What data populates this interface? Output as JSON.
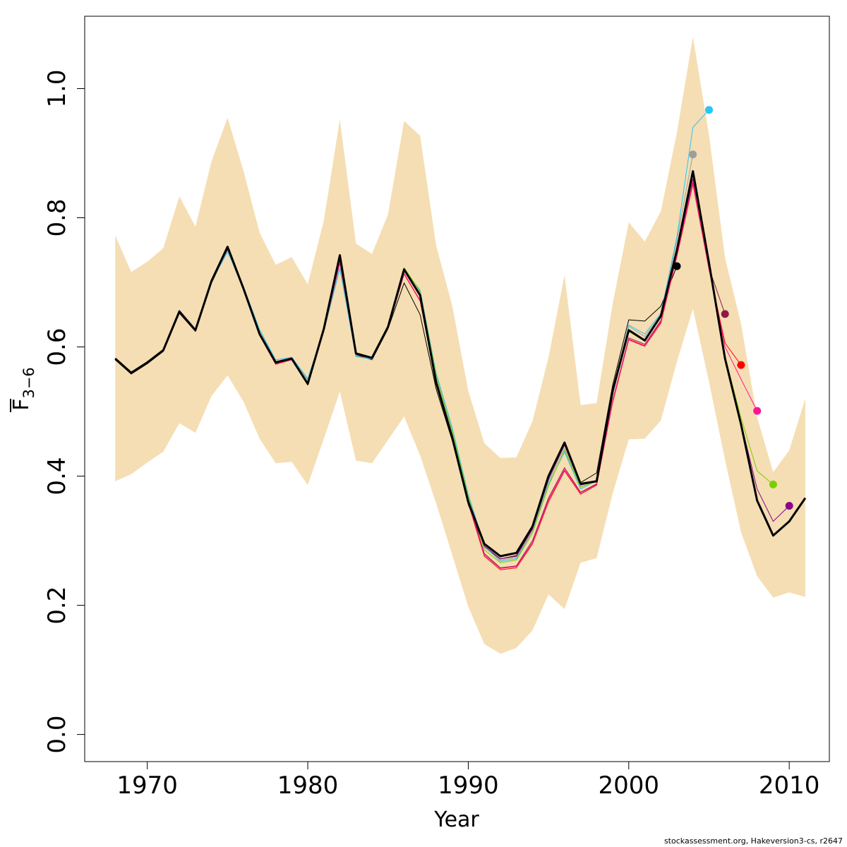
{
  "chart_data": {
    "type": "line",
    "xlabel": "Year",
    "ylabel": {
      "symbol": "F",
      "subscript": "3−6"
    },
    "xlim": [
      1966.1,
      2012.5
    ],
    "ylim": [
      -0.042,
      1.112
    ],
    "x_ticks": [
      "1970",
      "1980",
      "1990",
      "2000",
      "2010"
    ],
    "y_ticks": [
      "0.0",
      "0.2",
      "0.4",
      "0.6",
      "0.8",
      "1.0"
    ],
    "grid": false,
    "legend": "none",
    "confidence_band": {
      "color": "#F5DEB3",
      "years": [
        1968,
        1969,
        1970,
        1971,
        1972,
        1973,
        1974,
        1975,
        1976,
        1977,
        1978,
        1979,
        1980,
        1981,
        1982,
        1983,
        1984,
        1985,
        1986,
        1987,
        1988,
        1989,
        1990,
        1991,
        1992,
        1993,
        1994,
        1995,
        1996,
        1997,
        1998,
        1999,
        2000,
        2001,
        2002,
        2003,
        2004,
        2005,
        2006,
        2007,
        2008,
        2009,
        2010,
        2011
      ],
      "lower": [
        0.392,
        0.403,
        0.421,
        0.438,
        0.482,
        0.467,
        0.524,
        0.556,
        0.515,
        0.458,
        0.42,
        0.422,
        0.386,
        0.458,
        0.531,
        0.424,
        0.42,
        0.456,
        0.492,
        0.432,
        0.358,
        0.278,
        0.198,
        0.14,
        0.125,
        0.134,
        0.161,
        0.217,
        0.194,
        0.266,
        0.273,
        0.373,
        0.457,
        0.458,
        0.486,
        0.577,
        0.659,
        0.546,
        0.425,
        0.313,
        0.245,
        0.212,
        0.22,
        0.213
      ],
      "upper": [
        0.773,
        0.716,
        0.732,
        0.753,
        0.833,
        0.786,
        0.887,
        0.955,
        0.872,
        0.777,
        0.727,
        0.739,
        0.697,
        0.796,
        0.952,
        0.76,
        0.744,
        0.805,
        0.95,
        0.927,
        0.757,
        0.664,
        0.532,
        0.451,
        0.428,
        0.429,
        0.485,
        0.584,
        0.711,
        0.51,
        0.513,
        0.667,
        0.793,
        0.763,
        0.81,
        0.932,
        1.08,
        0.928,
        0.738,
        0.636,
        0.491,
        0.406,
        0.44,
        0.52
      ]
    },
    "series": [
      {
        "color": "#000000",
        "width": 3,
        "x": [
          1968,
          1969,
          1970,
          1971,
          1972,
          1973,
          1974,
          1975,
          1976,
          1977,
          1978,
          1979,
          1980,
          1981,
          1982,
          1983,
          1984,
          1985,
          1986,
          1987,
          1988,
          1989,
          1990,
          1991,
          1992,
          1993,
          1994,
          1995,
          1996,
          1997,
          1998,
          1999,
          2000,
          2001,
          2002,
          2003,
          2004,
          2005,
          2006,
          2007,
          2008,
          2009,
          2010,
          2011
        ],
        "values": [
          0.582,
          0.56,
          0.576,
          0.595,
          0.655,
          0.626,
          0.702,
          0.755,
          0.69,
          0.62,
          0.576,
          0.582,
          0.543,
          0.628,
          0.742,
          0.59,
          0.583,
          0.631,
          0.72,
          0.68,
          0.545,
          0.46,
          0.36,
          0.295,
          0.276,
          0.281,
          0.322,
          0.4,
          0.452,
          0.388,
          0.392,
          0.532,
          0.626,
          0.61,
          0.648,
          0.75,
          0.872,
          0.73,
          0.582,
          0.48,
          0.362,
          0.308,
          0.33,
          0.366
        ],
        "end_marker": false
      },
      {
        "color": "#000000",
        "width": 1,
        "x": [
          1968,
          1969,
          1970,
          1971,
          1972,
          1973,
          1974,
          1975,
          1976,
          1977,
          1978,
          1979,
          1980,
          1981,
          1982,
          1983,
          1984,
          1985,
          1986,
          1987,
          1988,
          1989,
          1990,
          1991,
          1992,
          1993,
          1994,
          1995,
          1996,
          1997,
          1998,
          1999,
          2000,
          2001,
          2002,
          2003
        ],
        "values": [
          0.58,
          0.558,
          0.574,
          0.593,
          0.652,
          0.624,
          0.699,
          0.75,
          0.688,
          0.618,
          0.574,
          0.58,
          0.541,
          0.625,
          0.735,
          0.588,
          0.58,
          0.628,
          0.699,
          0.65,
          0.535,
          0.455,
          0.356,
          0.29,
          0.272,
          0.277,
          0.319,
          0.399,
          0.451,
          0.39,
          0.405,
          0.541,
          0.642,
          0.64,
          0.663,
          0.725
        ],
        "end_marker": true
      },
      {
        "color": "#9E9E9E",
        "width": 1,
        "x": [
          1968,
          1969,
          1970,
          1971,
          1972,
          1973,
          1974,
          1975,
          1976,
          1977,
          1978,
          1979,
          1980,
          1981,
          1982,
          1983,
          1984,
          1985,
          1986,
          1987,
          1988,
          1989,
          1990,
          1991,
          1992,
          1993,
          1994,
          1995,
          1996,
          1997,
          1998,
          1999,
          2000,
          2001,
          2002,
          2003,
          2004
        ],
        "values": [
          0.581,
          0.559,
          0.575,
          0.594,
          0.656,
          0.627,
          0.7,
          0.749,
          0.692,
          0.625,
          0.578,
          0.583,
          0.549,
          0.624,
          0.721,
          0.586,
          0.581,
          0.632,
          0.718,
          0.684,
          0.552,
          0.468,
          0.368,
          0.29,
          0.27,
          0.274,
          0.315,
          0.392,
          0.443,
          0.383,
          0.394,
          0.525,
          0.632,
          0.616,
          0.65,
          0.765,
          0.898
        ],
        "end_marker": true
      },
      {
        "color": "#29C5F6",
        "width": 1,
        "x": [
          1968,
          1969,
          1970,
          1971,
          1972,
          1973,
          1974,
          1975,
          1976,
          1977,
          1978,
          1979,
          1980,
          1981,
          1982,
          1983,
          1984,
          1985,
          1986,
          1987,
          1988,
          1989,
          1990,
          1991,
          1992,
          1993,
          1994,
          1995,
          1996,
          1997,
          1998,
          1999,
          2000,
          2001,
          2002,
          2003,
          2004,
          2005
        ],
        "values": [
          0.581,
          0.56,
          0.576,
          0.595,
          0.657,
          0.627,
          0.701,
          0.747,
          0.693,
          0.627,
          0.58,
          0.584,
          0.551,
          0.626,
          0.722,
          0.585,
          0.581,
          0.633,
          0.72,
          0.688,
          0.56,
          0.475,
          0.372,
          0.292,
          0.268,
          0.272,
          0.312,
          0.388,
          0.437,
          0.38,
          0.393,
          0.528,
          0.634,
          0.62,
          0.652,
          0.77,
          0.94,
          0.967
        ],
        "end_marker": true
      },
      {
        "color": "#8B1A4A",
        "width": 1,
        "x": [
          1968,
          1969,
          1970,
          1971,
          1972,
          1973,
          1974,
          1975,
          1976,
          1977,
          1978,
          1979,
          1980,
          1981,
          1982,
          1983,
          1984,
          1985,
          1986,
          1987,
          1988,
          1989,
          1990,
          1991,
          1992,
          1993,
          1994,
          1995,
          1996,
          1997,
          1998,
          1999,
          2000,
          2001,
          2002,
          2003,
          2004,
          2005,
          2006
        ],
        "values": [
          0.581,
          0.559,
          0.575,
          0.594,
          0.654,
          0.625,
          0.7,
          0.752,
          0.69,
          0.619,
          0.575,
          0.581,
          0.545,
          0.625,
          0.73,
          0.588,
          0.582,
          0.629,
          0.713,
          0.672,
          0.547,
          0.462,
          0.362,
          0.28,
          0.258,
          0.261,
          0.3,
          0.366,
          0.413,
          0.375,
          0.388,
          0.517,
          0.614,
          0.604,
          0.641,
          0.745,
          0.86,
          0.722,
          0.651
        ],
        "end_marker": true
      },
      {
        "color": "#FF0000",
        "width": 1,
        "x": [
          1968,
          1969,
          1970,
          1971,
          1972,
          1973,
          1974,
          1975,
          1976,
          1977,
          1978,
          1979,
          1980,
          1981,
          1982,
          1983,
          1984,
          1985,
          1986,
          1987,
          1988,
          1989,
          1990,
          1991,
          1992,
          1993,
          1994,
          1995,
          1996,
          1997,
          1998,
          1999,
          2000,
          2001,
          2002,
          2003,
          2004,
          2005,
          2006,
          2007
        ],
        "values": [
          0.581,
          0.559,
          0.575,
          0.594,
          0.653,
          0.625,
          0.7,
          0.753,
          0.69,
          0.618,
          0.573,
          0.58,
          0.543,
          0.626,
          0.733,
          0.59,
          0.583,
          0.63,
          0.713,
          0.671,
          0.545,
          0.458,
          0.358,
          0.276,
          0.255,
          0.258,
          0.295,
          0.36,
          0.408,
          0.372,
          0.386,
          0.514,
          0.611,
          0.601,
          0.637,
          0.74,
          0.852,
          0.72,
          0.606,
          0.572
        ],
        "end_marker": true
      },
      {
        "color": "#FF1493",
        "width": 1,
        "x": [
          1968,
          1969,
          1970,
          1971,
          1972,
          1973,
          1974,
          1975,
          1976,
          1977,
          1978,
          1979,
          1980,
          1981,
          1982,
          1983,
          1984,
          1985,
          1986,
          1987,
          1988,
          1989,
          1990,
          1991,
          1992,
          1993,
          1994,
          1995,
          1996,
          1997,
          1998,
          1999,
          2000,
          2001,
          2002,
          2003,
          2004,
          2005,
          2006,
          2007,
          2008
        ],
        "values": [
          0.581,
          0.559,
          0.575,
          0.594,
          0.654,
          0.625,
          0.7,
          0.752,
          0.69,
          0.619,
          0.574,
          0.58,
          0.544,
          0.626,
          0.732,
          0.589,
          0.582,
          0.63,
          0.714,
          0.672,
          0.546,
          0.46,
          0.36,
          0.278,
          0.257,
          0.26,
          0.297,
          0.363,
          0.41,
          0.374,
          0.387,
          0.516,
          0.612,
          0.602,
          0.639,
          0.742,
          0.855,
          0.721,
          0.6,
          0.55,
          0.501
        ],
        "end_marker": true
      },
      {
        "color": "#7CCD00",
        "width": 1,
        "x": [
          1968,
          1969,
          1970,
          1971,
          1972,
          1973,
          1974,
          1975,
          1976,
          1977,
          1978,
          1979,
          1980,
          1981,
          1982,
          1983,
          1984,
          1985,
          1986,
          1987,
          1988,
          1989,
          1990,
          1991,
          1992,
          1993,
          1994,
          1995,
          1996,
          1997,
          1998,
          1999,
          2000,
          2001,
          2002,
          2003,
          2004,
          2005,
          2006,
          2007,
          2008,
          2009
        ],
        "values": [
          0.582,
          0.56,
          0.576,
          0.595,
          0.655,
          0.626,
          0.702,
          0.754,
          0.691,
          0.621,
          0.577,
          0.582,
          0.545,
          0.627,
          0.738,
          0.591,
          0.584,
          0.632,
          0.723,
          0.686,
          0.556,
          0.47,
          0.368,
          0.286,
          0.266,
          0.27,
          0.312,
          0.385,
          0.44,
          0.383,
          0.393,
          0.529,
          0.624,
          0.609,
          0.648,
          0.752,
          0.866,
          0.728,
          0.585,
          0.49,
          0.408,
          0.387
        ],
        "end_marker": true
      },
      {
        "color": "#8B008B",
        "width": 1,
        "x": [
          1968,
          1969,
          1970,
          1971,
          1972,
          1973,
          1974,
          1975,
          1976,
          1977,
          1978,
          1979,
          1980,
          1981,
          1982,
          1983,
          1984,
          1985,
          1986,
          1987,
          1988,
          1989,
          1990,
          1991,
          1992,
          1993,
          1994,
          1995,
          1996,
          1997,
          1998,
          1999,
          2000,
          2001,
          2002,
          2003,
          2004,
          2005,
          2006,
          2007,
          2008,
          2009,
          2010
        ],
        "values": [
          0.582,
          0.56,
          0.576,
          0.595,
          0.655,
          0.626,
          0.702,
          0.754,
          0.69,
          0.62,
          0.576,
          0.582,
          0.544,
          0.627,
          0.74,
          0.59,
          0.583,
          0.631,
          0.72,
          0.68,
          0.548,
          0.462,
          0.362,
          0.292,
          0.272,
          0.276,
          0.318,
          0.395,
          0.448,
          0.386,
          0.392,
          0.531,
          0.625,
          0.61,
          0.647,
          0.75,
          0.87,
          0.73,
          0.583,
          0.482,
          0.38,
          0.33,
          0.354
        ],
        "end_marker": true
      }
    ]
  },
  "footnote": "stockassessment.org, Hakeversion3-cs, r2647"
}
